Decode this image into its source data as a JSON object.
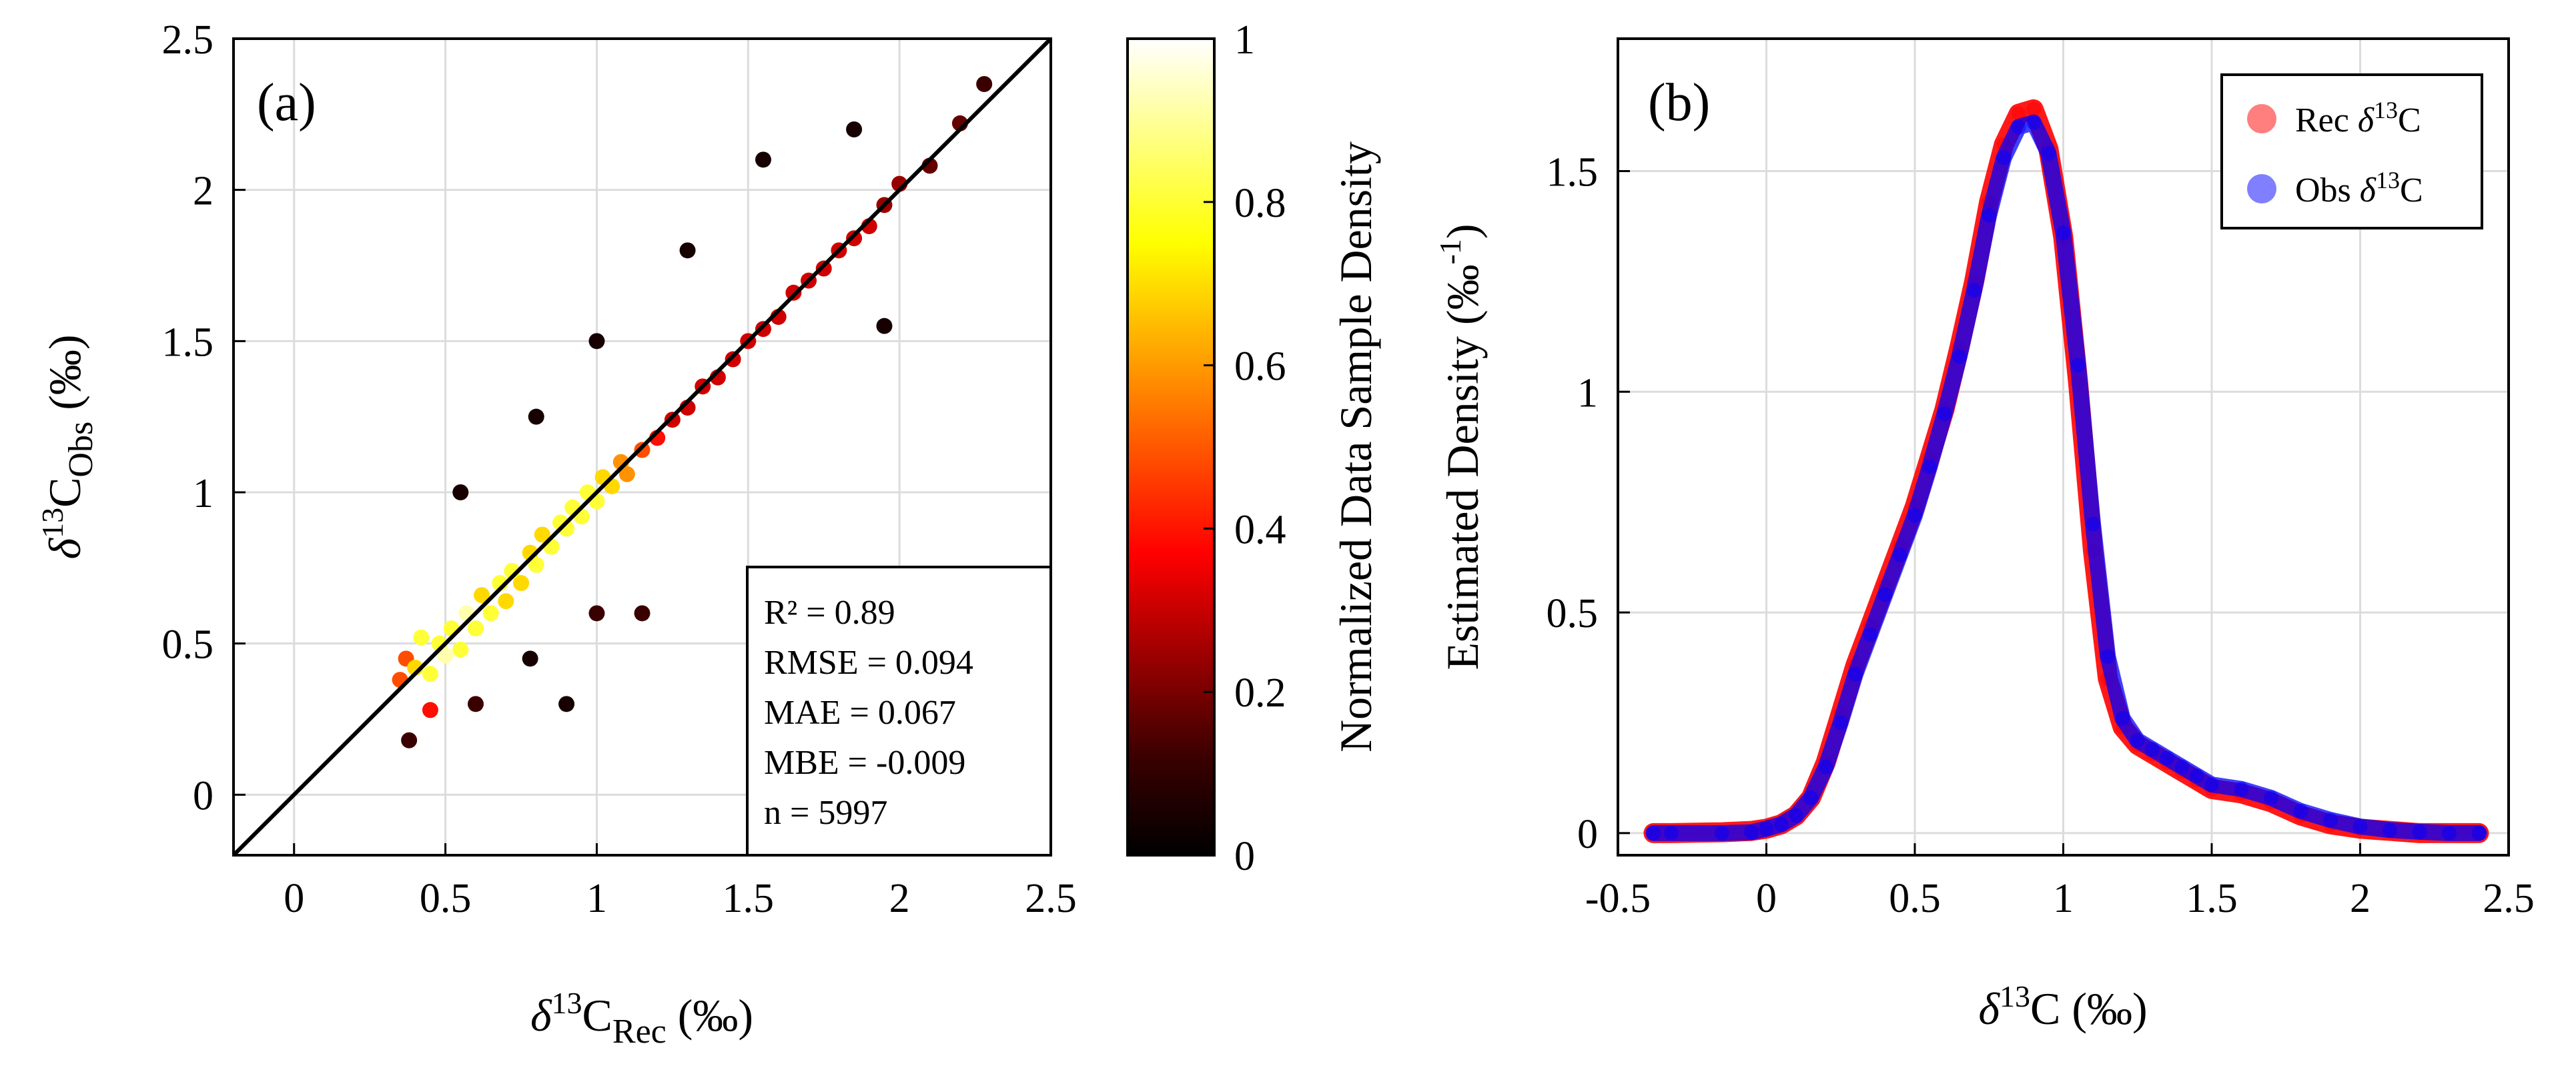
{
  "chart_data": [
    {
      "type": "scatter",
      "panel_label": "(a)",
      "xlabel": "δ13CRec (‰)",
      "ylabel": "δ13CObs (‰)",
      "xlim": [
        -0.2,
        2.5
      ],
      "ylim": [
        -0.2,
        2.5
      ],
      "xticks": [
        "0",
        "0.5",
        "1",
        "1.5",
        "2",
        "2.5"
      ],
      "yticks": [
        "0",
        "0.5",
        "1",
        "1.5",
        "2",
        "2.5"
      ],
      "grid": true,
      "reference_line": "1:1",
      "colormap": "hot",
      "colorbar": {
        "label": "Normalized Data Sample Density",
        "ticks": [
          "0",
          "0.2",
          "0.4",
          "0.6",
          "0.8",
          "1"
        ],
        "range": [
          0,
          1
        ]
      },
      "stats": [
        "R² = 0.89",
        "RMSE = 0.094",
        "MAE = 0.067",
        "MBE = -0.009",
        "n = 5997"
      ],
      "points": [
        [
          0.35,
          0.38
        ],
        [
          0.37,
          0.45
        ],
        [
          0.4,
          0.42
        ],
        [
          0.42,
          0.52
        ],
        [
          0.45,
          0.4
        ],
        [
          0.48,
          0.5
        ],
        [
          0.5,
          0.46
        ],
        [
          0.52,
          0.55
        ],
        [
          0.55,
          0.48
        ],
        [
          0.57,
          0.6
        ],
        [
          0.6,
          0.55
        ],
        [
          0.62,
          0.66
        ],
        [
          0.65,
          0.6
        ],
        [
          0.68,
          0.7
        ],
        [
          0.7,
          0.64
        ],
        [
          0.72,
          0.74
        ],
        [
          0.75,
          0.7
        ],
        [
          0.78,
          0.8
        ],
        [
          0.8,
          0.76
        ],
        [
          0.82,
          0.86
        ],
        [
          0.85,
          0.82
        ],
        [
          0.88,
          0.9
        ],
        [
          0.9,
          0.88
        ],
        [
          0.92,
          0.95
        ],
        [
          0.95,
          0.92
        ],
        [
          0.97,
          1.0
        ],
        [
          1.0,
          0.97
        ],
        [
          1.02,
          1.05
        ],
        [
          1.05,
          1.02
        ],
        [
          1.08,
          1.1
        ],
        [
          1.1,
          1.06
        ],
        [
          1.15,
          1.14
        ],
        [
          1.2,
          1.18
        ],
        [
          1.25,
          1.24
        ],
        [
          1.3,
          1.28
        ],
        [
          1.35,
          1.35
        ],
        [
          1.4,
          1.38
        ],
        [
          1.45,
          1.44
        ],
        [
          1.5,
          1.5
        ],
        [
          1.55,
          1.54
        ],
        [
          1.6,
          1.58
        ],
        [
          1.65,
          1.66
        ],
        [
          1.7,
          1.7
        ],
        [
          1.75,
          1.74
        ],
        [
          1.8,
          1.8
        ],
        [
          1.85,
          1.84
        ],
        [
          1.9,
          1.88
        ],
        [
          1.95,
          1.95
        ],
        [
          2.0,
          2.02
        ],
        [
          2.1,
          2.08
        ],
        [
          2.2,
          2.22
        ],
        [
          2.28,
          2.35
        ],
        [
          0.38,
          0.18
        ],
        [
          0.45,
          0.28
        ],
        [
          0.6,
          0.3
        ],
        [
          0.9,
          0.3
        ],
        [
          1.15,
          0.6
        ],
        [
          0.55,
          1.0
        ],
        [
          0.8,
          1.25
        ],
        [
          1.0,
          1.5
        ],
        [
          1.3,
          1.8
        ],
        [
          1.55,
          2.1
        ],
        [
          1.85,
          2.2
        ],
        [
          1.95,
          1.55
        ],
        [
          0.78,
          0.45
        ],
        [
          1.0,
          0.6
        ]
      ]
    },
    {
      "type": "line",
      "panel_label": "(b)",
      "xlabel": "δ13C (‰)",
      "ylabel": "Estimated Density (‰-1)",
      "xlim": [
        -0.5,
        2.5
      ],
      "ylim": [
        -0.05,
        1.8
      ],
      "xticks": [
        "-0.5",
        "0",
        "0.5",
        "1",
        "1.5",
        "2",
        "2.5"
      ],
      "yticks": [
        "0",
        "0.5",
        "1",
        "1.5"
      ],
      "grid": true,
      "legend_position": "top-right",
      "x": [
        -0.38,
        -0.32,
        -0.15,
        -0.05,
        0.0,
        0.05,
        0.1,
        0.15,
        0.2,
        0.25,
        0.3,
        0.35,
        0.4,
        0.45,
        0.5,
        0.55,
        0.6,
        0.65,
        0.7,
        0.75,
        0.8,
        0.85,
        0.9,
        0.95,
        1.0,
        1.05,
        1.1,
        1.15,
        1.2,
        1.25,
        1.3,
        1.35,
        1.4,
        1.45,
        1.5,
        1.6,
        1.7,
        1.8,
        1.9,
        2.0,
        2.1,
        2.2,
        2.3,
        2.4
      ],
      "series": [
        {
          "name": "Rec δ13C",
          "color": "#ff0000",
          "values": [
            0,
            0,
            0.002,
            0.005,
            0.01,
            0.02,
            0.04,
            0.08,
            0.16,
            0.27,
            0.38,
            0.47,
            0.56,
            0.65,
            0.74,
            0.85,
            0.96,
            1.1,
            1.25,
            1.43,
            1.56,
            1.63,
            1.64,
            1.55,
            1.35,
            1.02,
            0.64,
            0.35,
            0.24,
            0.2,
            0.18,
            0.16,
            0.14,
            0.12,
            0.1,
            0.09,
            0.07,
            0.04,
            0.02,
            0.01,
            0.005,
            0,
            0,
            0
          ]
        },
        {
          "name": "Obs δ13C",
          "color": "#0000ff",
          "values": [
            0,
            0,
            0,
            0.002,
            0.01,
            0.02,
            0.04,
            0.08,
            0.15,
            0.25,
            0.36,
            0.45,
            0.54,
            0.63,
            0.72,
            0.83,
            0.95,
            1.08,
            1.23,
            1.4,
            1.53,
            1.6,
            1.61,
            1.54,
            1.36,
            1.06,
            0.7,
            0.4,
            0.26,
            0.21,
            0.19,
            0.17,
            0.15,
            0.13,
            0.11,
            0.1,
            0.08,
            0.05,
            0.03,
            0.015,
            0.007,
            0.003,
            0,
            0
          ]
        }
      ]
    }
  ]
}
